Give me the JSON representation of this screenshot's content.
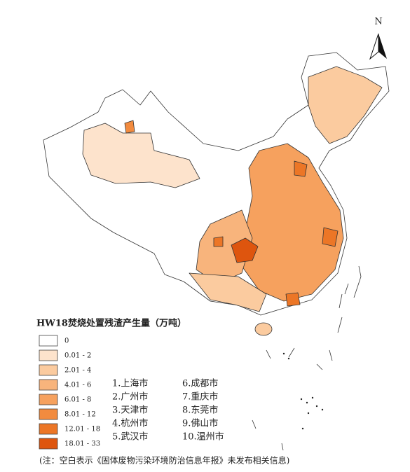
{
  "north_label": "N",
  "legend": {
    "title": "HW18焚烧处置残渣产生量（万吨）",
    "classes": [
      {
        "label": "0",
        "color": "#ffffff"
      },
      {
        "label": "0.01 - 2",
        "color": "#fde3cc"
      },
      {
        "label": "2.01 - 4",
        "color": "#fbcb9f"
      },
      {
        "label": "4.01 - 6",
        "color": "#f8b47c"
      },
      {
        "label": "6.01 - 8",
        "color": "#f6a15e"
      },
      {
        "label": "8.01 - 12",
        "color": "#f28b3f"
      },
      {
        "label": "12.01 - 18",
        "color": "#ec7626"
      },
      {
        "label": "18.01 - 33",
        "color": "#de550e"
      }
    ]
  },
  "cities": [
    "1.上海市",
    "2.广州市",
    "3.天津市",
    "4.杭州市",
    "5.武汉市",
    "6.成都市",
    "7.重庆市",
    "8.东莞市",
    "9.佛山市",
    "10.温州市"
  ],
  "note": "(注：空白表示《固体废物污染环境防治信息年报》未发布相关信息)"
}
